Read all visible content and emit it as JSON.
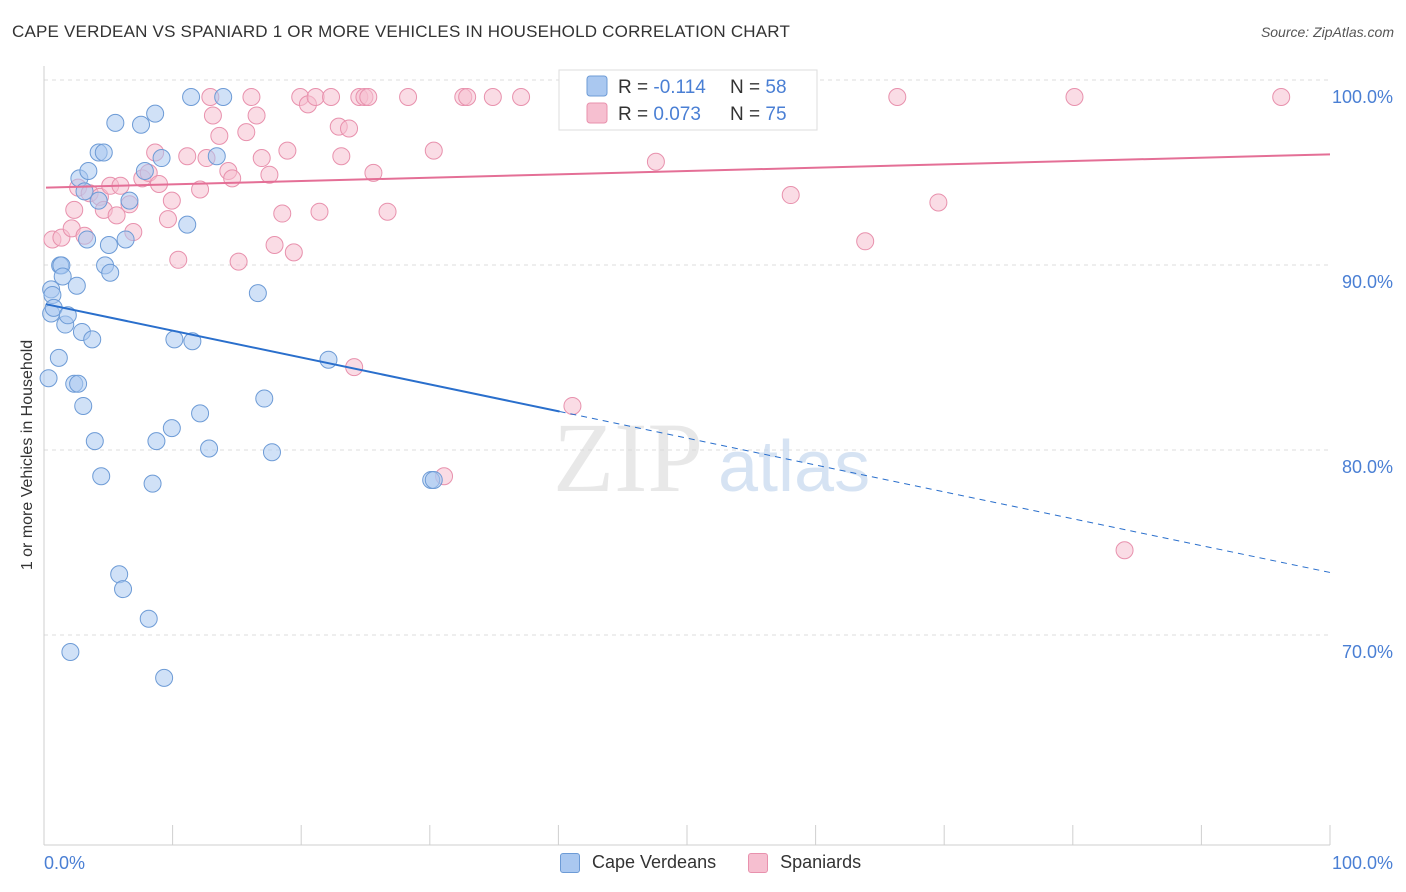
{
  "header": {
    "title": "CAPE VERDEAN VS SPANIARD 1 OR MORE VEHICLES IN HOUSEHOLD CORRELATION CHART",
    "source": "Source: ZipAtlas.com"
  },
  "watermark": {
    "zip": "ZIP",
    "atlas": "atlas"
  },
  "legend_top": [
    {
      "r_label": "R = ",
      "r_value": "-0.114",
      "n_label": "N = ",
      "n_value": "58"
    },
    {
      "r_label": "R = ",
      "r_value": "0.073",
      "n_label": "N = ",
      "n_value": "75"
    }
  ],
  "legend_bottom": [
    {
      "label": "Cape Verdeans"
    },
    {
      "label": "Spaniards"
    }
  ],
  "colors": {
    "blue_fill": "#aac8f0",
    "blue_stroke": "#6d9bd6",
    "blue_line": "#2a6fcc",
    "pink_fill": "#f6bfd0",
    "pink_stroke": "#e891ad",
    "pink_line": "#e46f96",
    "tick_text": "#4a7fd4",
    "grid": "#dddddd"
  },
  "chart_data": {
    "type": "scatter",
    "title": "CAPE VERDEAN VS SPANIARD 1 OR MORE VEHICLES IN HOUSEHOLD CORRELATION CHART",
    "xlabel": "",
    "ylabel": "1 or more Vehicles in Household",
    "xlim": [
      0,
      100
    ],
    "ylim": [
      60,
      102
    ],
    "x_tick_labels": [
      "0.0%",
      "100.0%"
    ],
    "y_ticks": [
      70,
      80,
      90,
      100
    ],
    "y_tick_labels": [
      "70.0%",
      "80.0%",
      "90.0%",
      "100.0%"
    ],
    "grid": true,
    "legend": "top-center",
    "series": [
      {
        "name": "Cape Verdeans",
        "r": -0.114,
        "n": 58,
        "trend": {
          "x": [
            0,
            40,
            100
          ],
          "y": [
            88.8,
            83.0,
            74.3
          ],
          "solid_to": 40
        },
        "points": [
          [
            0.2,
            84.8
          ],
          [
            0.4,
            88.3
          ],
          [
            0.4,
            89.6
          ],
          [
            0.5,
            89.3
          ],
          [
            0.6,
            88.6
          ],
          [
            1.0,
            85.9
          ],
          [
            1.1,
            90.9
          ],
          [
            1.2,
            90.9
          ],
          [
            1.3,
            90.3
          ],
          [
            1.5,
            87.7
          ],
          [
            1.7,
            88.2
          ],
          [
            1.9,
            70.0
          ],
          [
            2.2,
            84.5
          ],
          [
            2.4,
            89.8
          ],
          [
            2.5,
            84.5
          ],
          [
            2.6,
            95.6
          ],
          [
            2.8,
            87.3
          ],
          [
            2.9,
            83.3
          ],
          [
            3.0,
            94.9
          ],
          [
            3.2,
            92.3
          ],
          [
            3.3,
            96.0
          ],
          [
            3.6,
            86.9
          ],
          [
            3.8,
            81.4
          ],
          [
            4.1,
            97.0
          ],
          [
            4.1,
            94.4
          ],
          [
            4.3,
            79.5
          ],
          [
            4.5,
            97.0
          ],
          [
            4.6,
            90.9
          ],
          [
            4.9,
            92.0
          ],
          [
            5.0,
            90.5
          ],
          [
            5.4,
            98.6
          ],
          [
            5.7,
            74.2
          ],
          [
            6.0,
            73.4
          ],
          [
            6.2,
            92.3
          ],
          [
            6.5,
            94.4
          ],
          [
            7.4,
            98.5
          ],
          [
            7.7,
            96.0
          ],
          [
            8.0,
            71.8
          ],
          [
            8.3,
            79.1
          ],
          [
            8.5,
            99.1
          ],
          [
            8.6,
            81.4
          ],
          [
            9.0,
            96.7
          ],
          [
            9.2,
            68.6
          ],
          [
            9.8,
            82.1
          ],
          [
            10.0,
            86.9
          ],
          [
            11.0,
            93.1
          ],
          [
            11.3,
            100.0
          ],
          [
            11.4,
            86.8
          ],
          [
            12.0,
            82.9
          ],
          [
            12.7,
            81.0
          ],
          [
            13.3,
            96.8
          ],
          [
            13.8,
            100.0
          ],
          [
            16.5,
            89.4
          ],
          [
            17.0,
            83.7
          ],
          [
            17.6,
            80.8
          ],
          [
            22.0,
            85.8
          ],
          [
            30.0,
            79.3
          ],
          [
            30.2,
            79.3
          ]
        ]
      },
      {
        "name": "Spaniards",
        "r": 0.073,
        "n": 75,
        "trend": {
          "x": [
            0,
            100
          ],
          "y": [
            95.1,
            96.9
          ]
        },
        "points": [
          [
            0.5,
            92.3
          ],
          [
            1.2,
            92.4
          ],
          [
            2.0,
            92.9
          ],
          [
            2.2,
            93.9
          ],
          [
            2.5,
            95.1
          ],
          [
            3.0,
            92.5
          ],
          [
            3.4,
            94.8
          ],
          [
            4.2,
            94.6
          ],
          [
            4.5,
            93.9
          ],
          [
            5.0,
            95.2
          ],
          [
            5.5,
            93.6
          ],
          [
            5.8,
            95.2
          ],
          [
            6.5,
            94.2
          ],
          [
            6.8,
            92.7
          ],
          [
            7.5,
            95.6
          ],
          [
            8.0,
            95.9
          ],
          [
            8.5,
            97.0
          ],
          [
            8.8,
            95.3
          ],
          [
            9.5,
            93.4
          ],
          [
            9.8,
            94.4
          ],
          [
            10.3,
            91.2
          ],
          [
            11.0,
            96.8
          ],
          [
            12.0,
            95.0
          ],
          [
            12.5,
            96.7
          ],
          [
            12.8,
            100.0
          ],
          [
            13.0,
            99.0
          ],
          [
            13.5,
            97.9
          ],
          [
            14.2,
            96.0
          ],
          [
            14.5,
            95.6
          ],
          [
            15.0,
            91.1
          ],
          [
            15.6,
            98.1
          ],
          [
            16.0,
            100.0
          ],
          [
            16.4,
            99.0
          ],
          [
            16.8,
            96.7
          ],
          [
            17.4,
            95.8
          ],
          [
            17.8,
            92.0
          ],
          [
            18.4,
            93.7
          ],
          [
            18.8,
            97.1
          ],
          [
            19.3,
            91.6
          ],
          [
            19.8,
            100.0
          ],
          [
            20.4,
            99.6
          ],
          [
            21.0,
            100.0
          ],
          [
            21.3,
            93.8
          ],
          [
            22.2,
            100.0
          ],
          [
            22.8,
            98.4
          ],
          [
            23.0,
            96.8
          ],
          [
            23.6,
            98.3
          ],
          [
            24.0,
            85.4
          ],
          [
            24.4,
            100.0
          ],
          [
            24.8,
            100.0
          ],
          [
            25.1,
            100.0
          ],
          [
            25.5,
            95.9
          ],
          [
            26.6,
            93.8
          ],
          [
            28.2,
            100.0
          ],
          [
            30.2,
            97.1
          ],
          [
            31.0,
            79.5
          ],
          [
            32.5,
            100.0
          ],
          [
            32.8,
            100.0
          ],
          [
            34.8,
            100.0
          ],
          [
            37.0,
            100.0
          ],
          [
            41.0,
            83.3
          ],
          [
            45.0,
            100.0
          ],
          [
            47.5,
            96.5
          ],
          [
            48.5,
            100.0
          ],
          [
            49.0,
            100.0
          ],
          [
            51.0,
            100.0
          ],
          [
            52.5,
            100.0
          ],
          [
            56.0,
            100.0
          ],
          [
            58.0,
            94.7
          ],
          [
            63.8,
            92.2
          ],
          [
            66.3,
            100.0
          ],
          [
            69.5,
            94.3
          ],
          [
            80.1,
            100.0
          ],
          [
            84.0,
            75.5
          ],
          [
            96.2,
            100.0
          ]
        ]
      }
    ]
  }
}
